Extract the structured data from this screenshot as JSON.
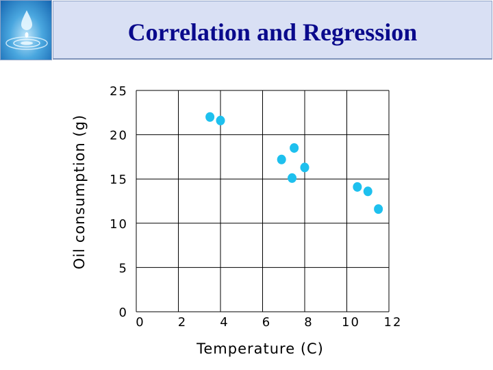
{
  "header": {
    "title": "Correlation and Regression",
    "logo_icon": "water-drop-ripple-icon"
  },
  "chart_data": {
    "type": "scatter",
    "title": "",
    "xlabel": "Temperature (C)",
    "ylabel": "Oil consumption (g)",
    "xlim": [
      0,
      12
    ],
    "ylim": [
      0,
      25
    ],
    "x_ticks": [
      "0",
      "2",
      "4",
      "6",
      "8",
      "10",
      "12"
    ],
    "y_ticks": [
      "0",
      "5",
      "10",
      "15",
      "20",
      "25"
    ],
    "grid": true,
    "point_color": "#1ec0ee",
    "series": [
      {
        "points": [
          {
            "x": 3.5,
            "y": 22.0
          },
          {
            "x": 4.0,
            "y": 21.6
          },
          {
            "x": 6.9,
            "y": 17.2
          },
          {
            "x": 7.5,
            "y": 18.5
          },
          {
            "x": 7.4,
            "y": 15.1
          },
          {
            "x": 8.0,
            "y": 16.3
          },
          {
            "x": 10.5,
            "y": 14.1
          },
          {
            "x": 11.0,
            "y": 13.6
          },
          {
            "x": 11.5,
            "y": 11.6
          }
        ]
      }
    ]
  }
}
